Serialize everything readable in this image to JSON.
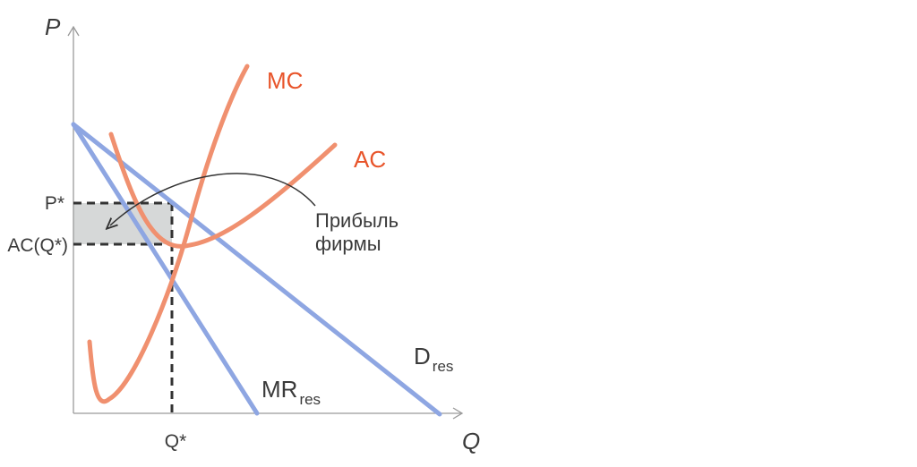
{
  "axes": {
    "y_label": "P",
    "x_label": "Q"
  },
  "ticks": {
    "price": "P*",
    "avg_cost": "AC(Q*)",
    "quantity": "Q*"
  },
  "curves": {
    "mc": {
      "label": "MC",
      "color": "#f0906f"
    },
    "ac": {
      "label": "AC",
      "color": "#f0906f"
    },
    "demand": {
      "label": "D",
      "subscript": "res",
      "color": "#8ea6e2"
    },
    "marginal_revenue": {
      "label": "MR",
      "subscript": "res",
      "color": "#8ea6e2"
    }
  },
  "annotation": {
    "line1": "Прибыль",
    "line2": "фирмы"
  },
  "colors": {
    "cost_label": "#e8542a",
    "profit_area": "#d6d8d8",
    "axis": "#9a9a9a",
    "guide": "#333333"
  }
}
